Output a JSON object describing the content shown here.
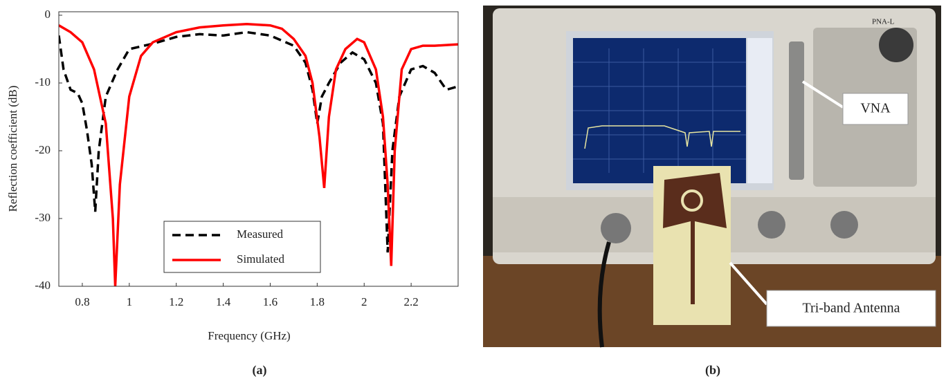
{
  "chart_data": {
    "type": "line",
    "xlabel": "Frequency (GHz)",
    "ylabel": "Reflection coefficient (dB)",
    "xlim": [
      0.7,
      2.4
    ],
    "xticks": [
      0.8,
      1,
      1.2,
      1.4,
      1.6,
      1.8,
      2,
      2.2
    ],
    "ylim": [
      -40,
      0
    ],
    "yticks": [
      0,
      -10,
      -20,
      -30,
      -40
    ],
    "legend": "lower-center",
    "series": [
      {
        "name": "Measured",
        "color": "#000000",
        "dashed": true,
        "x": [
          0.7,
          0.72,
          0.75,
          0.78,
          0.8,
          0.82,
          0.84,
          0.855,
          0.87,
          0.9,
          0.95,
          1.0,
          1.1,
          1.2,
          1.3,
          1.4,
          1.5,
          1.6,
          1.7,
          1.75,
          1.78,
          1.8,
          1.82,
          1.85,
          1.9,
          1.95,
          2.0,
          2.05,
          2.08,
          2.1,
          2.12,
          2.15,
          2.2,
          2.25,
          2.3,
          2.35,
          2.4
        ],
        "values": [
          -3,
          -8,
          -11,
          -11.5,
          -13,
          -17,
          -22,
          -29,
          -20,
          -12,
          -8,
          -5,
          -4.2,
          -3.2,
          -2.8,
          -3,
          -2.5,
          -3,
          -4.5,
          -7,
          -11,
          -16,
          -12,
          -10,
          -7,
          -5.5,
          -6.5,
          -10,
          -16,
          -35,
          -20,
          -12,
          -8,
          -7.5,
          -8.5,
          -11,
          -10.5
        ]
      },
      {
        "name": "Simulated",
        "color": "#ff0000",
        "dashed": false,
        "x": [
          0.7,
          0.75,
          0.8,
          0.85,
          0.9,
          0.93,
          0.94,
          0.96,
          1.0,
          1.05,
          1.1,
          1.2,
          1.3,
          1.4,
          1.5,
          1.6,
          1.65,
          1.7,
          1.75,
          1.78,
          1.81,
          1.83,
          1.85,
          1.88,
          1.92,
          1.97,
          2.0,
          2.05,
          2.08,
          2.1,
          2.115,
          2.13,
          2.16,
          2.2,
          2.25,
          2.3,
          2.4
        ],
        "values": [
          -1.5,
          -2.5,
          -4,
          -8,
          -16,
          -30,
          -40,
          -25,
          -12,
          -6,
          -4,
          -2.5,
          -1.8,
          -1.5,
          -1.3,
          -1.5,
          -2,
          -3.5,
          -6,
          -10,
          -18,
          -25.5,
          -15,
          -8,
          -5,
          -3.5,
          -4,
          -8,
          -15,
          -25,
          -37,
          -20,
          -8,
          -5,
          -4.5,
          -4.5,
          -4.3
        ]
      }
    ]
  },
  "photo": {
    "device_label": "PNA-L",
    "callouts": [
      "VNA",
      "Tri-band Antenna"
    ]
  },
  "captions": [
    "(a)",
    "(b)"
  ]
}
